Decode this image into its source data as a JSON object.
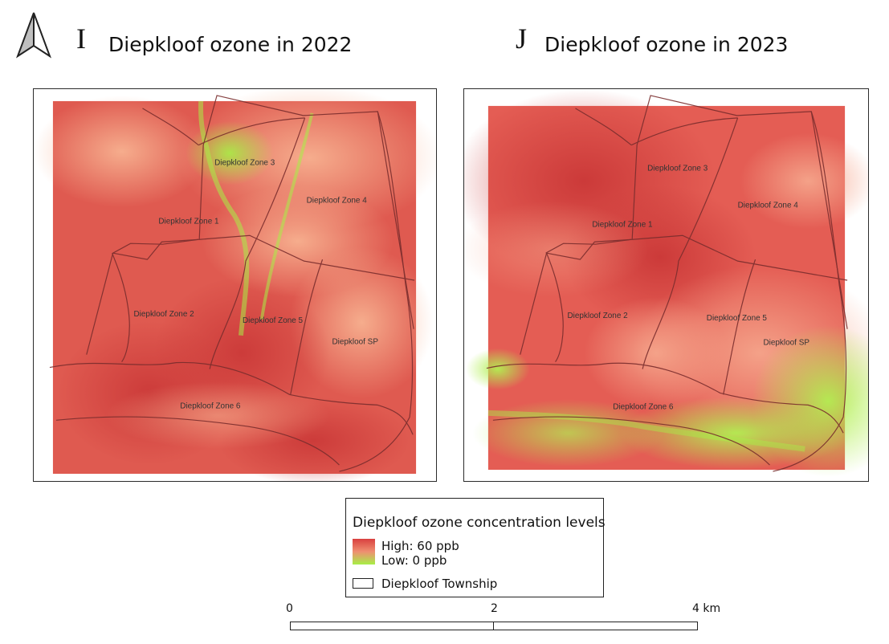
{
  "north_arrow": {
    "icon": "north-arrow-icon"
  },
  "panels": [
    {
      "letter": "I",
      "title": "Diepkloof ozone in 2022",
      "zone_labels": [
        "Diepkloof Zone 3",
        "Diepkloof Zone 4",
        "Diepkloof Zone 1",
        "Diepkloof Zone 2",
        "Diepkloof Zone 5",
        "Diepkloof SP",
        "Diepkloof Zone 6"
      ]
    },
    {
      "letter": "J",
      "title": "Diepkloof ozone in 2023",
      "zone_labels": [
        "Diepkloof Zone 3",
        "Diepkloof Zone 4",
        "Diepkloof Zone 1",
        "Diepkloof Zone 2",
        "Diepkloof Zone 5",
        "Diepkloof SP",
        "Diepkloof Zone 6"
      ]
    }
  ],
  "legend": {
    "title": "Diepkloof ozone concentration levels",
    "high": "High: 60 ppb",
    "low": "Low: 0 ppb",
    "boundary": "Diepkloof Township",
    "colors": {
      "high": "#d93f3f",
      "mid": "#ef8f71",
      "low": "#a7ef46"
    }
  },
  "scale_bar": {
    "labels": [
      "0",
      "2",
      "4 km"
    ]
  }
}
